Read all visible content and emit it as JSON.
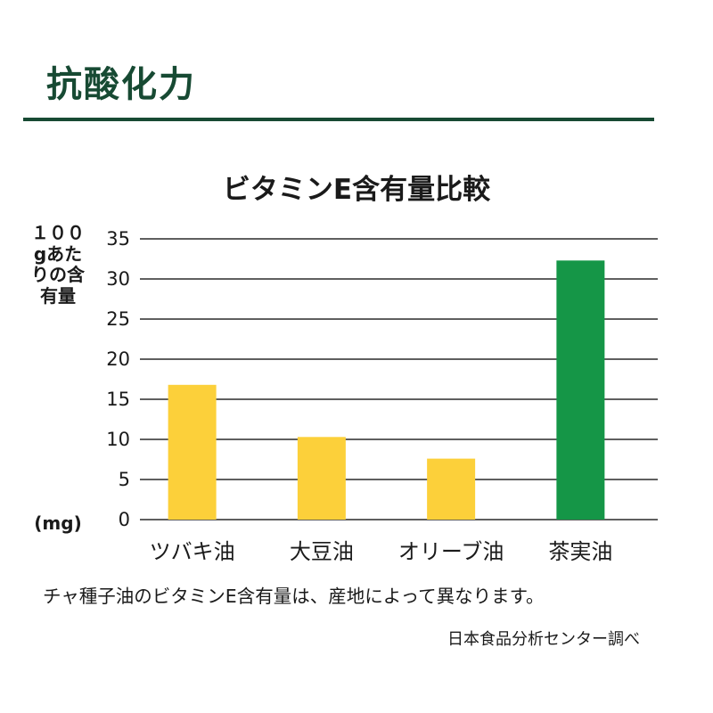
{
  "heading": "抗酸化力",
  "chart_data": {
    "type": "bar",
    "title": "ビタミンE含有量比較",
    "ylabel": "１００gあたりの含有量",
    "yunit": "(mg)",
    "xlabel": "",
    "categories": [
      "ツバキ油",
      "大豆油",
      "オリーブ油",
      "茶実油"
    ],
    "values": [
      16.8,
      10.3,
      7.6,
      32.3
    ],
    "bar_colors": [
      "#fcd03a",
      "#fcd03a",
      "#fcd03a",
      "#159647"
    ],
    "ylim": [
      0,
      35
    ],
    "yticks": [
      0,
      5,
      10,
      15,
      20,
      25,
      30,
      35
    ],
    "grid": true,
    "legend": "none"
  },
  "note": "チャ種子油のビタミンE含有量は、産地によって異なります。",
  "source": "日本食品分析センター調べ"
}
